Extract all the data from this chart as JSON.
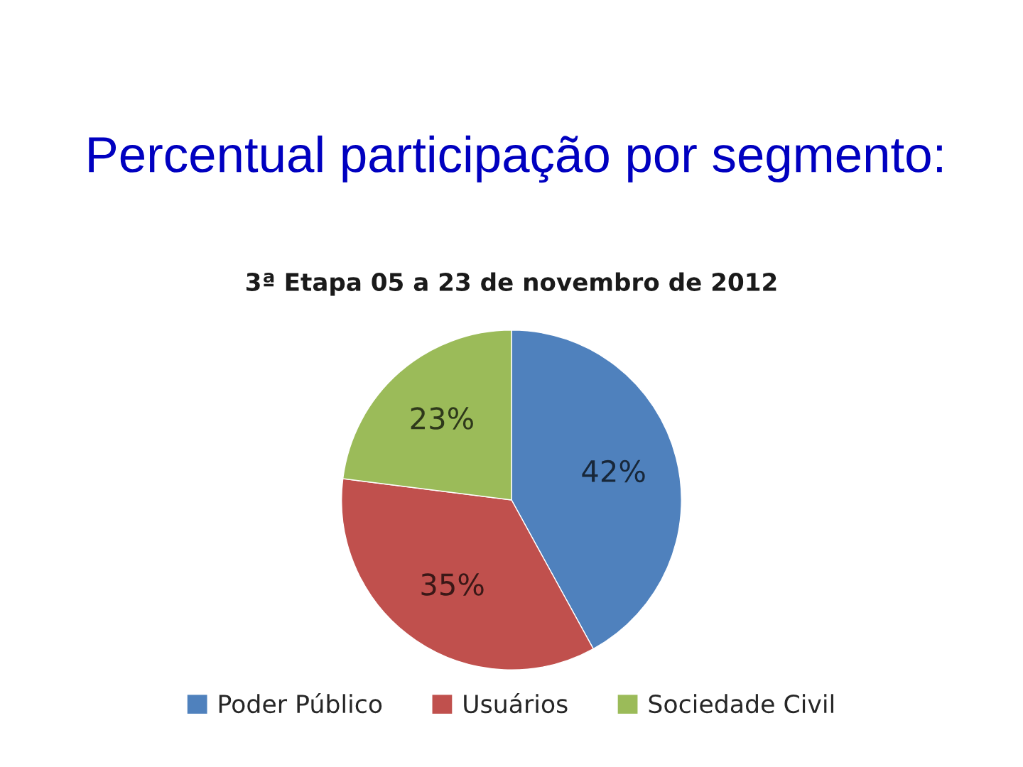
{
  "chart_data": {
    "type": "pie",
    "title": "Percentual participação por segmento:",
    "subtitle": "3ª Etapa 05 a 23 de novembro de 2012",
    "categories": [
      "Poder Público",
      "Usuários",
      "Sociedade Civil"
    ],
    "values": [
      42,
      35,
      23
    ],
    "value_labels": [
      "42%",
      "35%",
      "23%"
    ],
    "colors": [
      "#4f81bd",
      "#c0504d",
      "#9bbb59"
    ],
    "legend": "bottom"
  }
}
